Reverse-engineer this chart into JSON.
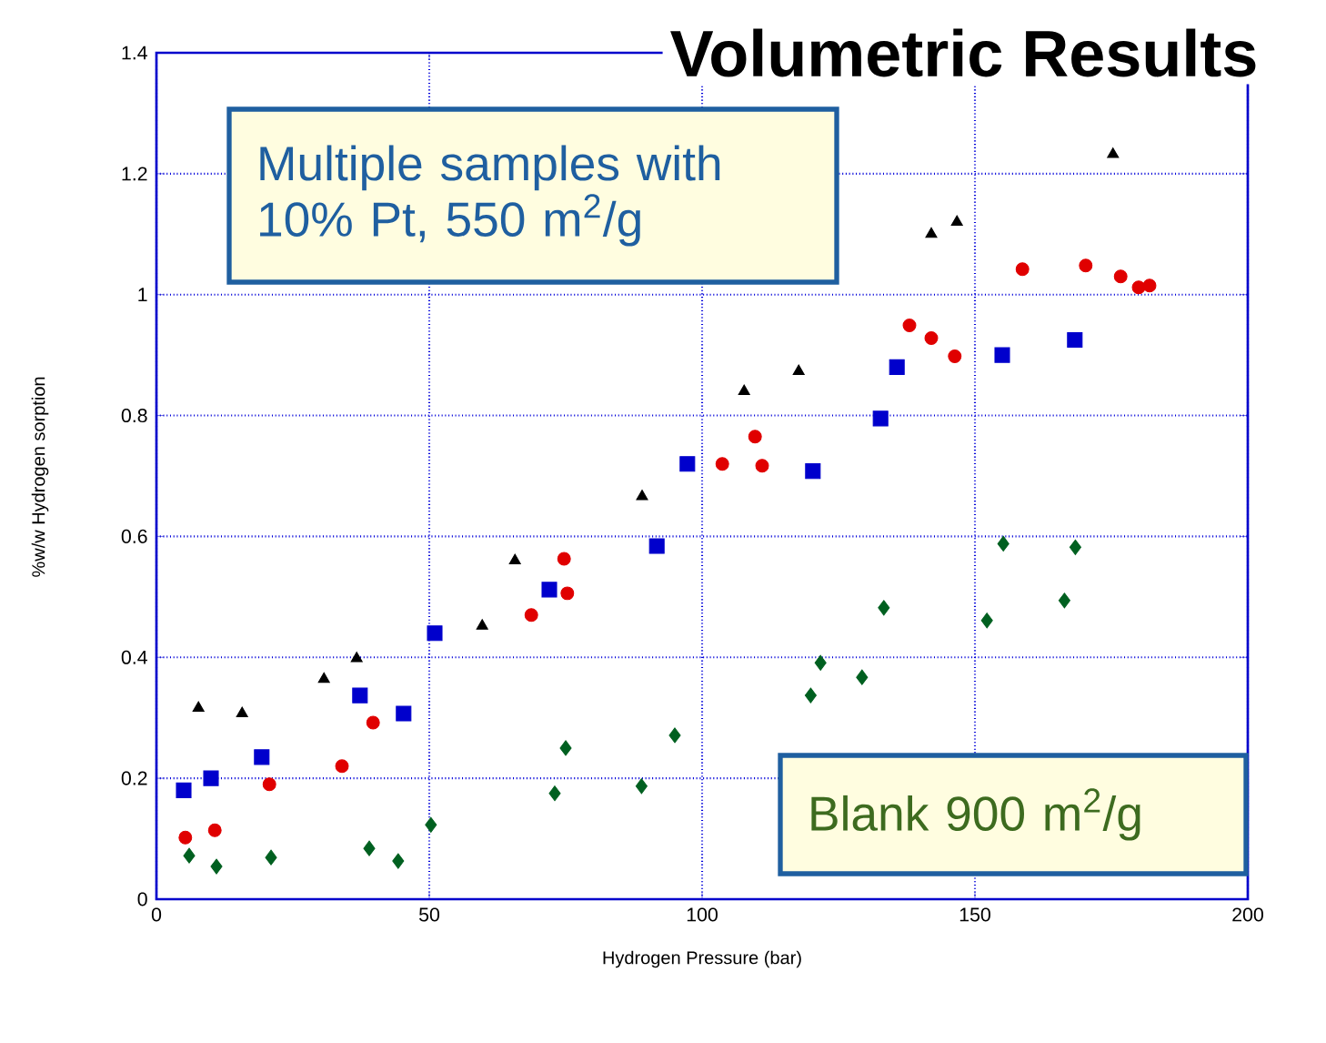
{
  "chart_data": {
    "type": "scatter",
    "title": "Volumetric Results",
    "xlabel": "Hydrogen Pressure (bar)",
    "ylabel": "%w/w Hydrogen sorption",
    "annotations": [
      "Multiple samples with 10% Pt, 550 m$^{2}$/g",
      "Blank 900 m$^{2}$/g"
    ],
    "xlim": [
      0,
      200
    ],
    "xticks": [
      0,
      50,
      100,
      150,
      200
    ],
    "ylim": [
      0,
      1.4
    ],
    "yticks": [
      0,
      0.2,
      0.4,
      0.6,
      0.8,
      1,
      1.2,
      1.4
    ],
    "grid": true,
    "series": [
      {
        "color": "#000000",
        "marker": "triangle",
        "x": [
          7.7,
          15.7,
          30.7,
          36.7,
          59.7,
          65.7,
          89,
          107.7,
          117.7,
          142,
          146.7,
          175.3
        ],
        "values": [
          0.316,
          0.307,
          0.364,
          0.398,
          0.452,
          0.56,
          0.666,
          0.84,
          0.873,
          1.1,
          1.12,
          1.232
        ]
      },
      {
        "color": "#0000cc",
        "marker": "square",
        "x": [
          5,
          10,
          19.3,
          37.3,
          45.3,
          51,
          72,
          91.7,
          97.3,
          120.3,
          132.7,
          135.7,
          155,
          168.3
        ],
        "values": [
          0.18,
          0.2,
          0.235,
          0.337,
          0.307,
          0.44,
          0.512,
          0.584,
          0.72,
          0.708,
          0.795,
          0.88,
          0.9,
          0.925
        ]
      },
      {
        "color": "#e00000",
        "marker": "circle",
        "x": [
          5.3,
          10.7,
          20.7,
          34,
          39.7,
          68.7,
          74.7,
          75.3,
          103.7,
          109.7,
          111,
          138,
          142,
          146.3,
          158.7,
          170.3,
          176.7,
          180,
          182
        ],
        "values": [
          0.102,
          0.114,
          0.19,
          0.22,
          0.292,
          0.47,
          0.563,
          0.506,
          0.72,
          0.765,
          0.717,
          0.949,
          0.928,
          0.898,
          1.042,
          1.048,
          1.03,
          1.012,
          1.015
        ]
      },
      {
        "color": "#006020",
        "marker": "diamond",
        "x": [
          6,
          11,
          21,
          39,
          44.3,
          50.3,
          73,
          75,
          88.9,
          95,
          119.9,
          121.7,
          129.3,
          133.3,
          152.2,
          155.2,
          166.4,
          168.4
        ],
        "values": [
          0.072,
          0.054,
          0.069,
          0.084,
          0.063,
          0.123,
          0.175,
          0.25,
          0.187,
          0.271,
          0.337,
          0.391,
          0.367,
          0.482,
          0.461,
          0.588,
          0.494,
          0.582
        ]
      }
    ]
  }
}
